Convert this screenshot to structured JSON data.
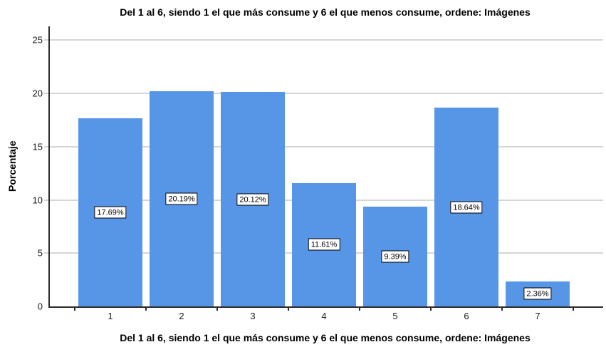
{
  "chart_data": {
    "type": "bar",
    "title": "Del 1 al 6, siendo 1 el que más consume y 6 el que menos consume, ordene: Imágenes",
    "xlabel": "Del 1 al 6, siendo 1 el que más consume y 6 el que menos consume, ordene: Imágenes",
    "ylabel": "Porcentaje",
    "categories": [
      "1",
      "2",
      "3",
      "4",
      "5",
      "6",
      "7"
    ],
    "values": [
      17.69,
      20.19,
      20.12,
      11.61,
      9.39,
      18.64,
      2.36
    ],
    "value_labels": [
      "17.69%",
      "20.19%",
      "20.12%",
      "11.61%",
      "9.39%",
      "18.64%",
      "2.36%"
    ],
    "y_ticks": [
      0,
      5,
      10,
      15,
      20,
      25
    ],
    "ylim": [
      0,
      26.3
    ],
    "grid": true,
    "legend_position": "none",
    "bar_color": "#5795E6",
    "grid_color": "#d6d6d6",
    "axis_color": "#2b2b2b",
    "label_box_bg": "#ffffff",
    "label_box_border": "#000000"
  }
}
